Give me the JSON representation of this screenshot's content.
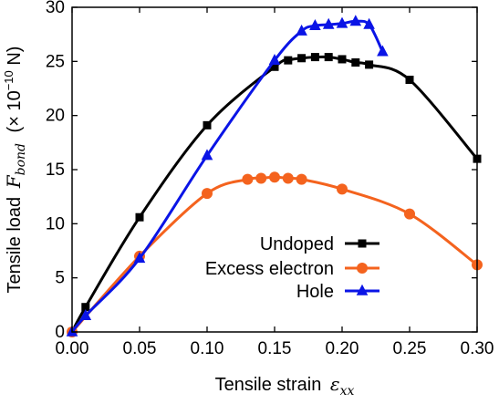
{
  "chart_data": {
    "type": "line",
    "xlabel": "Tensile strain",
    "xlabel_symbol": "ε",
    "xlabel_subscript": "xx",
    "ylabel": "Tensile load",
    "ylabel_symbol": "F",
    "ylabel_subscript": "bond",
    "ylabel_unit_prefix": "(× 10",
    "ylabel_unit_exponent": "−10",
    "ylabel_unit_suffix": " N)",
    "xlim": [
      0.0,
      0.3
    ],
    "ylim": [
      0,
      30
    ],
    "x_ticks": [
      0.0,
      0.05,
      0.1,
      0.15,
      0.2,
      0.25,
      0.3
    ],
    "x_tick_labels": [
      "0.00",
      "0.05",
      "0.10",
      "0.15",
      "0.20",
      "0.25",
      "0.30"
    ],
    "y_ticks": [
      0,
      5,
      10,
      15,
      20,
      25,
      30
    ],
    "y_tick_labels": [
      "0",
      "5",
      "10",
      "15",
      "20",
      "25",
      "30"
    ],
    "grid": false,
    "legend_position": "lower-right",
    "series": [
      {
        "name": "Undoped",
        "color": "#000000",
        "marker": "square",
        "x": [
          0.0,
          0.01,
          0.05,
          0.1,
          0.15,
          0.16,
          0.17,
          0.18,
          0.19,
          0.2,
          0.21,
          0.22,
          0.25,
          0.3
        ],
        "y": [
          0.0,
          2.3,
          10.6,
          19.1,
          24.5,
          25.1,
          25.3,
          25.4,
          25.4,
          25.2,
          24.9,
          24.7,
          23.3,
          16.0
        ]
      },
      {
        "name": "Excess electron",
        "color": "#F4631E",
        "marker": "circle",
        "x": [
          0.0,
          0.05,
          0.1,
          0.13,
          0.14,
          0.15,
          0.16,
          0.17,
          0.2,
          0.25,
          0.3
        ],
        "y": [
          0.0,
          7.0,
          12.8,
          14.1,
          14.2,
          14.3,
          14.2,
          14.1,
          13.2,
          10.9,
          6.2
        ]
      },
      {
        "name": "Hole",
        "color": "#0A14E6",
        "marker": "triangle",
        "x": [
          0.0,
          0.01,
          0.05,
          0.1,
          0.15,
          0.17,
          0.18,
          0.19,
          0.2,
          0.21,
          0.22,
          0.23
        ],
        "y": [
          0.0,
          1.5,
          6.8,
          16.3,
          25.1,
          27.8,
          28.3,
          28.4,
          28.5,
          28.7,
          28.4,
          25.9
        ]
      }
    ]
  }
}
